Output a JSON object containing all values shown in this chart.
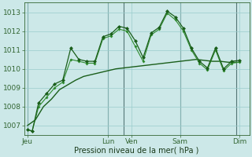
{
  "xlabel": "Pression niveau de la mer( hPa )",
  "bg_color": "#cce8e8",
  "grid_color": "#99cccc",
  "line_color1": "#1a5e1a",
  "line_color2": "#2e8b2e",
  "line_color3": "#1a5e1a",
  "ylim": [
    1006.5,
    1013.5
  ],
  "yticks": [
    1007,
    1008,
    1009,
    1010,
    1011,
    1012,
    1013
  ],
  "xlim": [
    -0.2,
    13.8
  ],
  "x_day_labels": [
    {
      "label": "Jeu",
      "x": 0
    },
    {
      "label": "Lun",
      "x": 5
    },
    {
      "label": "Ven",
      "x": 6.5
    },
    {
      "label": "Sam",
      "x": 9.5
    },
    {
      "label": "Dim",
      "x": 13.2
    }
  ],
  "x_vlines": [
    0,
    5,
    6,
    9.5,
    13
  ],
  "s1_x": [
    0,
    0.3,
    0.7,
    1.2,
    1.7,
    2.2,
    2.7,
    3.2,
    3.7,
    4.2,
    4.7,
    5.2,
    5.7,
    6.2,
    6.7,
    7.2,
    7.7,
    8.2,
    8.7,
    9.2,
    9.7,
    10.2,
    10.7,
    11.2,
    11.7,
    12.2,
    12.7,
    13.2
  ],
  "s1_y": [
    1006.8,
    1006.7,
    1008.2,
    1008.7,
    1009.2,
    1009.4,
    1011.1,
    1010.5,
    1010.4,
    1010.4,
    1011.7,
    1011.85,
    1012.25,
    1012.15,
    1011.5,
    1010.6,
    1011.9,
    1012.2,
    1013.05,
    1012.75,
    1012.15,
    1011.1,
    1010.4,
    1010.05,
    1011.1,
    1010.0,
    1010.4,
    1010.45
  ],
  "s2_x": [
    0,
    0.3,
    0.7,
    1.2,
    1.7,
    2.2,
    2.7,
    3.2,
    3.7,
    4.2,
    4.7,
    5.2,
    5.7,
    6.2,
    6.7,
    7.2,
    7.7,
    8.2,
    8.7,
    9.2,
    9.7,
    10.2,
    10.7,
    11.2,
    11.7,
    12.2,
    12.7,
    13.2
  ],
  "s2_y": [
    1006.8,
    1006.7,
    1008.0,
    1008.5,
    1009.0,
    1009.3,
    1010.5,
    1010.4,
    1010.3,
    1010.3,
    1011.6,
    1011.75,
    1012.1,
    1012.0,
    1011.2,
    1010.4,
    1011.8,
    1012.1,
    1012.95,
    1012.6,
    1012.0,
    1011.0,
    1010.3,
    1009.95,
    1011.0,
    1009.9,
    1010.3,
    1010.35
  ],
  "s3_x": [
    0,
    0.5,
    1,
    1.5,
    2,
    2.5,
    3,
    3.5,
    4,
    4.5,
    5,
    5.5,
    6,
    6.5,
    7,
    7.5,
    8,
    8.5,
    9,
    9.5,
    10,
    10.5,
    11,
    11.5,
    12,
    12.5,
    13,
    13.2
  ],
  "s3_y": [
    1007.0,
    1007.3,
    1008.0,
    1008.4,
    1008.9,
    1009.15,
    1009.4,
    1009.6,
    1009.7,
    1009.8,
    1009.9,
    1010.0,
    1010.05,
    1010.1,
    1010.15,
    1010.2,
    1010.25,
    1010.3,
    1010.35,
    1010.4,
    1010.45,
    1010.5,
    1010.45,
    1010.4,
    1010.4,
    1010.35,
    1010.35,
    1010.35
  ]
}
